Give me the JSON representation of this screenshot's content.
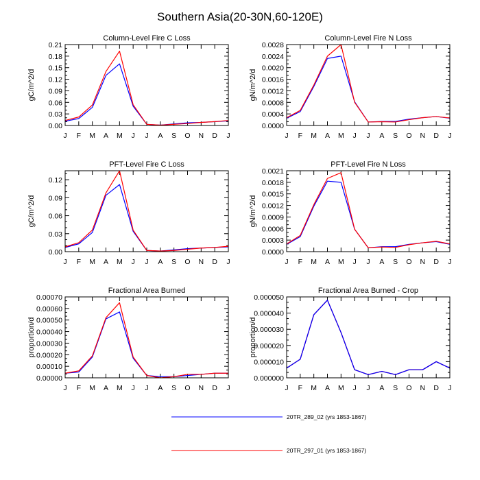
{
  "figure_title": "Southern Asia(20-30N,60-120E)",
  "legend": [
    {
      "name": "20TR_289_02 (yrs 1853-1867)",
      "color": "#0000ff"
    },
    {
      "name": "20TR_297_01 (yrs 1853-1867)",
      "color": "#ff0000"
    }
  ],
  "chart_data": [
    {
      "type": "line",
      "title": "Column-Level Fire C Loss",
      "ylabel": "gC/m^2/d",
      "categories": [
        "J",
        "F",
        "M",
        "A",
        "M",
        "J",
        "J",
        "A",
        "S",
        "O",
        "N",
        "D",
        "J"
      ],
      "ylim": [
        0,
        0.21
      ],
      "yticks": [
        "0.00",
        "0.03",
        "0.06",
        "0.09",
        "0.12",
        "0.15",
        "0.18",
        "0.21"
      ],
      "series": [
        {
          "name": "20TR_289_02 (yrs 1853-1867)",
          "color": "#0000ff",
          "values": [
            0.011,
            0.018,
            0.047,
            0.13,
            0.16,
            0.05,
            0.003,
            0.001,
            0.004,
            0.007,
            0.008,
            0.01,
            0.012
          ]
        },
        {
          "name": "20TR_297_01 (yrs 1853-1867)",
          "color": "#ff0000",
          "values": [
            0.013,
            0.022,
            0.053,
            0.14,
            0.193,
            0.054,
            0.003,
            0.001,
            0.003,
            0.005,
            0.008,
            0.01,
            0.013
          ]
        }
      ]
    },
    {
      "type": "line",
      "title": "Column-Level Fire N Loss",
      "ylabel": "gN/m^2/d",
      "categories": [
        "J",
        "F",
        "M",
        "A",
        "M",
        "J",
        "J",
        "A",
        "S",
        "O",
        "N",
        "D",
        "J"
      ],
      "ylim": [
        0,
        0.0028
      ],
      "yticks": [
        "0.0000",
        "0.0004",
        "0.0008",
        "0.0012",
        "0.0016",
        "0.0020",
        "0.0024",
        "0.0028"
      ],
      "series": [
        {
          "name": "20TR_289_02 (yrs 1853-1867)",
          "color": "#0000ff",
          "values": [
            0.00025,
            0.00048,
            0.00135,
            0.00232,
            0.0024,
            0.00082,
            0.00012,
            0.00014,
            0.00014,
            0.00022,
            0.00027,
            0.00031,
            0.00025
          ]
        },
        {
          "name": "20TR_297_01 (yrs 1853-1867)",
          "color": "#ff0000",
          "values": [
            0.00027,
            0.00052,
            0.0014,
            0.0024,
            0.0028,
            0.0008,
            0.00012,
            0.00013,
            0.00012,
            0.0002,
            0.00027,
            0.00031,
            0.00026
          ]
        }
      ]
    },
    {
      "type": "line",
      "title": "PFT-Level Fire C Loss",
      "ylabel": "gC/m^2/d",
      "categories": [
        "J",
        "F",
        "M",
        "A",
        "M",
        "J",
        "J",
        "A",
        "S",
        "O",
        "N",
        "D",
        "J"
      ],
      "ylim": [
        0,
        0.135
      ],
      "yticks": [
        "0.00",
        "0.03",
        "0.06",
        "0.09",
        "0.12"
      ],
      "series": [
        {
          "name": "20TR_289_02 (yrs 1853-1867)",
          "color": "#0000ff",
          "values": [
            0.007,
            0.013,
            0.032,
            0.094,
            0.112,
            0.034,
            0.002,
            0.001,
            0.003,
            0.005,
            0.006,
            0.007,
            0.008
          ]
        },
        {
          "name": "20TR_297_01 (yrs 1853-1867)",
          "color": "#ff0000",
          "values": [
            0.008,
            0.015,
            0.036,
            0.098,
            0.135,
            0.036,
            0.002,
            0.001,
            0.002,
            0.004,
            0.006,
            0.007,
            0.009
          ]
        }
      ]
    },
    {
      "type": "line",
      "title": "PFT-Level Fire N Loss",
      "ylabel": "gN/m^2/d",
      "categories": [
        "J",
        "F",
        "M",
        "A",
        "M",
        "J",
        "J",
        "A",
        "S",
        "O",
        "N",
        "D",
        "J"
      ],
      "ylim": [
        0,
        0.0021
      ],
      "yticks": [
        "0.0000",
        "0.0003",
        "0.0006",
        "0.0009",
        "0.0012",
        "0.0015",
        "0.0018",
        "0.0021"
      ],
      "series": [
        {
          "name": "20TR_289_02 (yrs 1853-1867)",
          "color": "#0000ff",
          "values": [
            0.00019,
            0.00039,
            0.00118,
            0.00183,
            0.0018,
            0.00058,
            0.0001,
            0.00013,
            0.00013,
            0.00019,
            0.00023,
            0.00026,
            0.00019
          ]
        },
        {
          "name": "20TR_297_01 (yrs 1853-1867)",
          "color": "#ff0000",
          "values": [
            0.0002,
            0.00042,
            0.00122,
            0.0019,
            0.00205,
            0.00058,
            0.0001,
            0.00012,
            0.00011,
            0.00018,
            0.00023,
            0.00027,
            0.0002
          ]
        }
      ]
    },
    {
      "type": "line",
      "title": "Fractional Area Burned",
      "ylabel": "proportion/d",
      "categories": [
        "J",
        "F",
        "M",
        "A",
        "M",
        "J",
        "J",
        "A",
        "S",
        "O",
        "N",
        "D",
        "J"
      ],
      "ylim": [
        0,
        0.0007
      ],
      "yticks": [
        "0.00000",
        "0.00010",
        "0.00020",
        "0.00030",
        "0.00040",
        "0.00050",
        "0.00060",
        "0.00070"
      ],
      "series": [
        {
          "name": "20TR_289_02 (yrs 1853-1867)",
          "color": "#0000ff",
          "values": [
            4e-05,
            5e-05,
            0.00018,
            0.00051,
            0.00057,
            0.00017,
            2e-05,
            1e-05,
            1e-05,
            2e-05,
            3e-05,
            4e-05,
            4e-05
          ]
        },
        {
          "name": "20TR_297_01 (yrs 1853-1867)",
          "color": "#ff0000",
          "values": [
            4e-05,
            6e-05,
            0.00019,
            0.00052,
            0.00065,
            0.00018,
            2e-05,
            0.0,
            1e-05,
            3e-05,
            3e-05,
            4e-05,
            4e-05
          ]
        }
      ]
    },
    {
      "type": "line",
      "title": "Fractional Area Burned - Crop",
      "ylabel": "proportion/d",
      "categories": [
        "J",
        "F",
        "M",
        "A",
        "M",
        "J",
        "J",
        "A",
        "S",
        "O",
        "N",
        "D",
        "J"
      ],
      "ylim": [
        0,
        5e-05
      ],
      "yticks": [
        "0.000000",
        "0.000010",
        "0.000020",
        "0.000030",
        "0.000040",
        "0.000050"
      ],
      "series": [
        {
          "name": "20TR_289_02 (yrs 1853-1867)",
          "color": "#0000ff",
          "values": [
            6e-06,
            1.15e-05,
            3.9e-05,
            4.8e-05,
            2.8e-05,
            5e-06,
            2e-06,
            4e-06,
            2e-06,
            5e-06,
            5e-06,
            1e-05,
            6e-06
          ]
        },
        {
          "name": "20TR_297_01 (yrs 1853-1867)",
          "color": "#ff0000",
          "values": [
            6e-06,
            1.15e-05,
            3.9e-05,
            4.8e-05,
            2.8e-05,
            5e-06,
            2e-06,
            4e-06,
            2e-06,
            5e-06,
            5e-06,
            1e-05,
            6e-06
          ]
        }
      ]
    }
  ]
}
